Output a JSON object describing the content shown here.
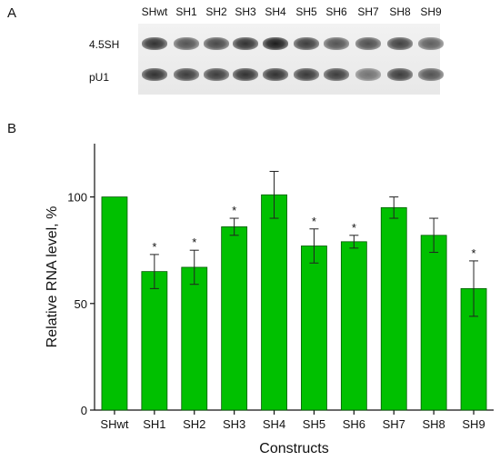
{
  "panel_labels": {
    "a": "A",
    "b": "B"
  },
  "blot": {
    "lanes": [
      "SHwt",
      "SH1",
      "SH2",
      "SH3",
      "SH4",
      "SH5",
      "SH6",
      "SH7",
      "SH8",
      "SH9"
    ],
    "rows": [
      {
        "label": "4.5SH",
        "intensity": [
          0.85,
          0.7,
          0.75,
          0.85,
          0.95,
          0.8,
          0.7,
          0.72,
          0.78,
          0.65
        ]
      },
      {
        "label": "pU1",
        "intensity": [
          0.85,
          0.8,
          0.8,
          0.85,
          0.85,
          0.82,
          0.8,
          0.55,
          0.8,
          0.7
        ]
      }
    ]
  },
  "chart_data": {
    "type": "bar",
    "categories": [
      "SHwt",
      "SH1",
      "SH2",
      "SH3",
      "SH4",
      "SH5",
      "SH6",
      "SH7",
      "SH8",
      "SH9"
    ],
    "values": [
      100,
      65,
      67,
      86,
      101,
      77,
      79,
      95,
      82,
      57
    ],
    "errors": [
      0,
      8,
      8,
      4,
      11,
      8,
      3,
      5,
      8,
      13
    ],
    "significance": [
      "",
      "*",
      "*",
      "*",
      "",
      "*",
      "*",
      "",
      "",
      "*"
    ],
    "xlabel": "Constructs",
    "ylabel": "Relative RNA level, %",
    "yticks": [
      0,
      50,
      100
    ],
    "ylim": [
      0,
      125
    ],
    "bar_color": "#00c000",
    "bar_edge_color": "#005a00",
    "grid": false
  }
}
